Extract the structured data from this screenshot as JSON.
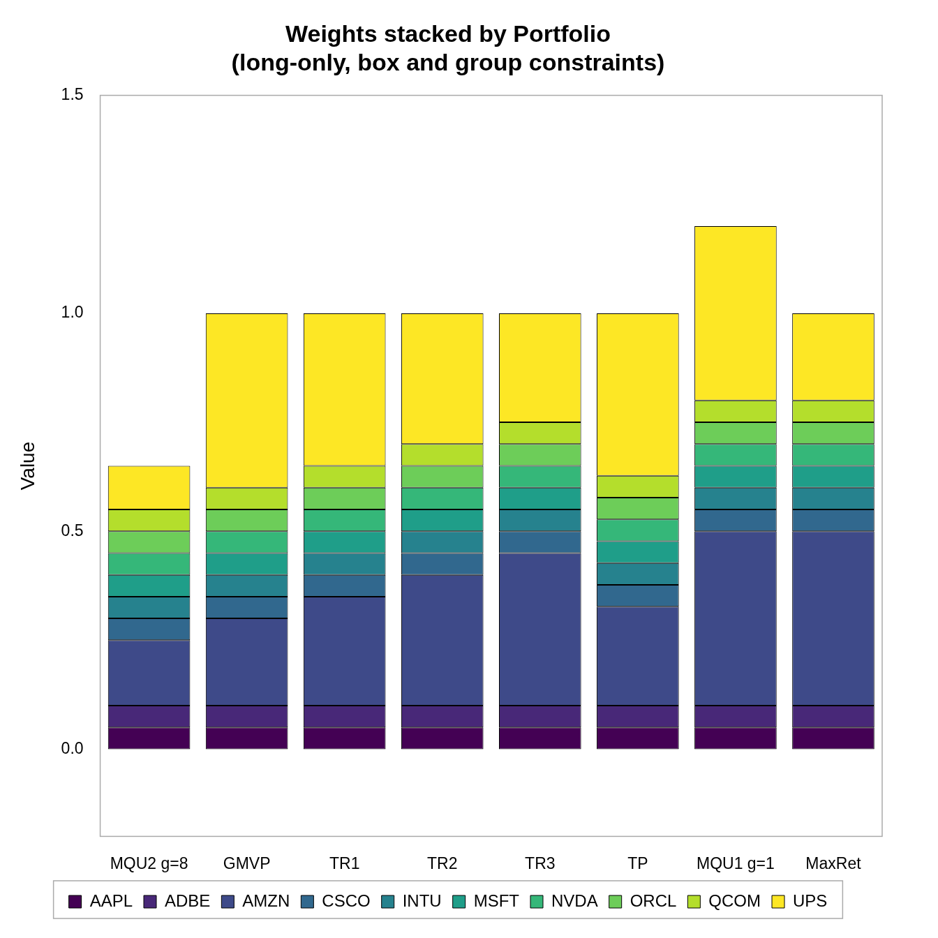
{
  "chart_data": {
    "type": "bar",
    "title": [
      "Weights stacked by Portfolio",
      "(long-only, box and group constraints)"
    ],
    "y_label": "Value",
    "categories": [
      "MQU2 g=8",
      "GMVP",
      "TR1",
      "TR2",
      "TR3",
      "TP",
      "MQU1 g=1",
      "MaxRet"
    ],
    "series": [
      {
        "name": "AAPL",
        "color": "#440154",
        "values": [
          0.05,
          0.05,
          0.05,
          0.05,
          0.05,
          0.05,
          0.05,
          0.05
        ]
      },
      {
        "name": "ADBE",
        "color": "#482878",
        "values": [
          0.05,
          0.05,
          0.05,
          0.05,
          0.05,
          0.05,
          0.05,
          0.05
        ]
      },
      {
        "name": "AMZN",
        "color": "#3E4A89",
        "values": [
          0.15,
          0.2,
          0.25,
          0.3,
          0.35,
          0.227,
          0.4,
          0.4
        ]
      },
      {
        "name": "CSCO",
        "color": "#31688E",
        "values": [
          0.05,
          0.05,
          0.05,
          0.05,
          0.05,
          0.05,
          0.05,
          0.05
        ]
      },
      {
        "name": "INTU",
        "color": "#26828E",
        "values": [
          0.05,
          0.05,
          0.05,
          0.05,
          0.05,
          0.05,
          0.05,
          0.05
        ]
      },
      {
        "name": "MSFT",
        "color": "#1F9E89",
        "values": [
          0.05,
          0.05,
          0.05,
          0.05,
          0.05,
          0.05,
          0.05,
          0.05
        ]
      },
      {
        "name": "NVDA",
        "color": "#35B779",
        "values": [
          0.05,
          0.05,
          0.05,
          0.05,
          0.05,
          0.05,
          0.05,
          0.05
        ]
      },
      {
        "name": "ORCL",
        "color": "#6DCD59",
        "values": [
          0.05,
          0.05,
          0.05,
          0.05,
          0.05,
          0.05,
          0.05,
          0.05
        ]
      },
      {
        "name": "QCOM",
        "color": "#B4DE2C",
        "values": [
          0.05,
          0.05,
          0.05,
          0.05,
          0.05,
          0.05,
          0.05,
          0.05
        ]
      },
      {
        "name": "UPS",
        "color": "#FDE725",
        "values": [
          0.1,
          0.4,
          0.35,
          0.3,
          0.25,
          0.373,
          0.4,
          0.2
        ]
      }
    ],
    "stacked": true,
    "ylim": [
      -0.2,
      1.5
    ],
    "yticks": [
      {
        "value": 0,
        "label": "0.0"
      },
      0.5,
      {
        "value": 1,
        "label": "1.0"
      },
      1.5
    ],
    "grid": false,
    "legend": "bottom"
  }
}
